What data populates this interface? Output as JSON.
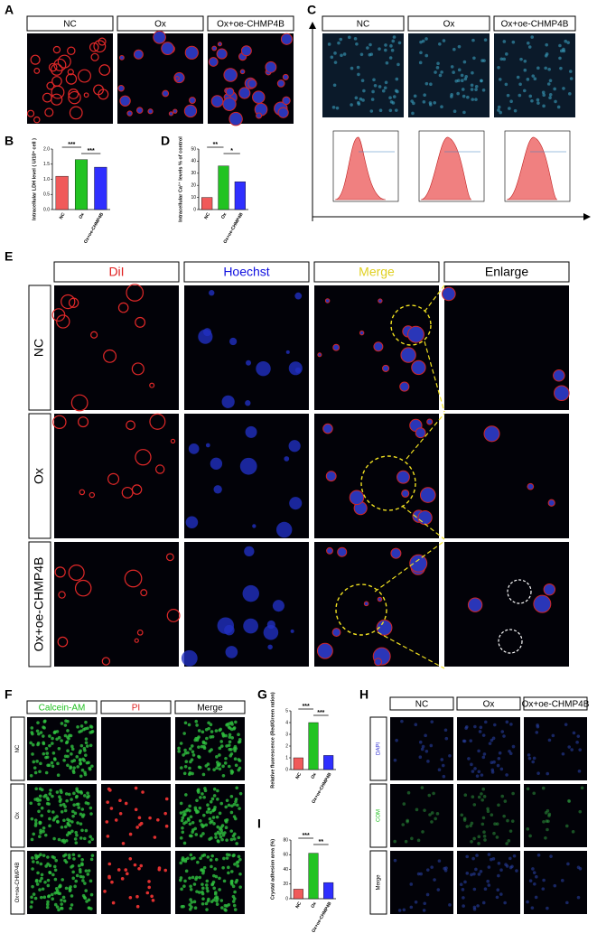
{
  "panel_labels": [
    "A",
    "B",
    "C",
    "D",
    "E",
    "F",
    "G",
    "H",
    "I"
  ],
  "panel_a": {
    "headers": [
      "NC",
      "Ox",
      "Ox+oe-CHMP4B"
    ]
  },
  "panel_c": {
    "headers": [
      "NC",
      "Ox",
      "Ox+oe-CHMP4B"
    ]
  },
  "panel_e": {
    "headers": [
      "DiI",
      "Hoechst",
      "Merge",
      "Enlarge"
    ],
    "rows": [
      "NC",
      "Ox",
      "Ox+oe-CHMP4B"
    ]
  },
  "panel_f": {
    "headers": [
      "Calcein-AM",
      "PI",
      "Merge"
    ],
    "rows": [
      "NC",
      "Ox",
      "Ox+oe-CHMP4B"
    ]
  },
  "panel_h": {
    "headers": [
      "NC",
      "Ox",
      "Ox+oe-CHMP4B"
    ],
    "rows": [
      "DAPI",
      "COM",
      "Merge"
    ]
  },
  "chart_data": [
    {
      "type": "bar",
      "y_label": "Intracellular LDH level ( U/10⁶ cell )",
      "categories": [
        "NC",
        "Ox",
        "Ox+oe-CHMP4B"
      ],
      "values": [
        1.1,
        1.65,
        1.4
      ],
      "colors": [
        "#f05a5a",
        "#22c322",
        "#2f2fff"
      ],
      "ylim": [
        0,
        2
      ],
      "yticks": [
        {
          "value": 0,
          "label": "0.0"
        },
        {
          "value": 0.5,
          "label": "0.5"
        },
        {
          "value": 1,
          "label": "1.0"
        },
        {
          "value": 1.5,
          "label": "1.5"
        },
        {
          "value": 2,
          "label": "2.0"
        }
      ],
      "annotations": [
        "***",
        "***"
      ]
    },
    {
      "type": "bar",
      "y_label": "Intracellular Ca²⁺ levels % of control",
      "categories": [
        "NC",
        "Ox",
        "Ox+oe-CHMP4B"
      ],
      "values": [
        10,
        36,
        23
      ],
      "colors": [
        "#f05a5a",
        "#22c322",
        "#2f2fff"
      ],
      "ylim": [
        0,
        50
      ],
      "yticks": [
        0,
        10,
        20,
        30,
        40,
        50
      ],
      "annotations": [
        "**",
        "*"
      ]
    },
    {
      "type": "bar",
      "y_label": "Relative fluorescence (Red/Green ration)",
      "categories": [
        "NC",
        "Ox",
        "Ox+oe-CHMP4B"
      ],
      "values": [
        1,
        4,
        1.2
      ],
      "colors": [
        "#f05a5a",
        "#22c322",
        "#2f2fff"
      ],
      "ylim": [
        0,
        5
      ],
      "yticks": [
        0,
        1,
        2,
        3,
        4,
        5
      ],
      "annotations": [
        "***",
        "***"
      ]
    },
    {
      "type": "bar",
      "y_label": "Crystal adhesion area (%)",
      "categories": [
        "NC",
        "Ox",
        "Ox+oe-CHMP4B"
      ],
      "values": [
        13,
        62,
        22
      ],
      "colors": [
        "#f05a5a",
        "#22c322",
        "#2f2fff"
      ],
      "ylim": [
        0,
        80
      ],
      "yticks": [
        0,
        20,
        40,
        60,
        80
      ],
      "annotations": [
        "***",
        "**"
      ]
    }
  ]
}
